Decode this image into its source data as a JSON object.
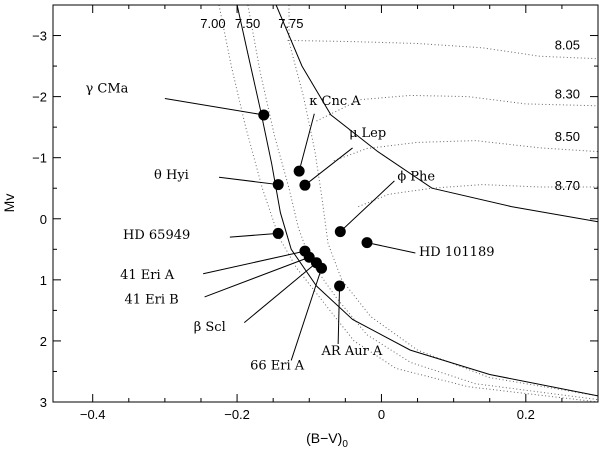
{
  "chart_data": {
    "type": "scatter",
    "xlabel": "(B−V)",
    "xlabel_sub": "0",
    "ylabel": "Mv",
    "xlim": [
      -0.455,
      0.3
    ],
    "ylim": [
      3.0,
      -3.5
    ],
    "x_inverted": false,
    "y_inverted": true,
    "xticks": [
      -0.4,
      -0.2,
      0.0,
      0.2
    ],
    "xtick_labels": [
      "−0.4",
      "−0.2",
      "0",
      "0.2"
    ],
    "yticks": [
      -3,
      -2,
      -1,
      0,
      1,
      2,
      3
    ],
    "ytick_labels": [
      "−3",
      "−2",
      "−1",
      "0",
      "1",
      "2",
      "3"
    ],
    "grid": false,
    "stars": [
      {
        "name": "γ CMa",
        "bv": -0.163,
        "mv": -1.7,
        "label_bv": -0.41,
        "label_mv": -2.07,
        "anchor": "start"
      },
      {
        "name": "κ Cnc A",
        "bv": -0.114,
        "mv": -0.78,
        "label_bv": -0.1,
        "label_mv": -1.86,
        "anchor": "start"
      },
      {
        "name": "μ Lep",
        "bv": -0.106,
        "mv": -0.55,
        "label_bv": -0.045,
        "label_mv": -1.34,
        "anchor": "start"
      },
      {
        "name": "θ Hyi",
        "bv": -0.143,
        "mv": -0.56,
        "label_bv": -0.315,
        "label_mv": -0.65,
        "anchor": "start"
      },
      {
        "name": "ϕ Phe",
        "bv": -0.057,
        "mv": 0.21,
        "label_bv": 0.022,
        "label_mv": -0.63,
        "anchor": "start"
      },
      {
        "name": "HD 65949",
        "bv": -0.143,
        "mv": 0.24,
        "label_bv": -0.358,
        "label_mv": 0.33,
        "anchor": "start"
      },
      {
        "name": "HD 101189",
        "bv": -0.02,
        "mv": 0.39,
        "label_bv": 0.052,
        "label_mv": 0.61,
        "anchor": "start"
      },
      {
        "name": "41 Eri A",
        "bv": -0.106,
        "mv": 0.53,
        "label_bv": -0.362,
        "label_mv": 0.99,
        "anchor": "start"
      },
      {
        "name": "41 Eri B",
        "bv": -0.1,
        "mv": 0.63,
        "label_bv": -0.356,
        "label_mv": 1.39,
        "anchor": "start"
      },
      {
        "name": "β Scl",
        "bv": -0.09,
        "mv": 0.72,
        "label_bv": -0.26,
        "label_mv": 1.84,
        "anchor": "start"
      },
      {
        "name": "66 Eri A",
        "bv": -0.083,
        "mv": 0.81,
        "label_bv": -0.182,
        "label_mv": 2.47,
        "anchor": "start"
      },
      {
        "name": "AR Aur A",
        "bv": -0.058,
        "mv": 1.1,
        "label_bv": -0.083,
        "label_mv": 2.23,
        "anchor": "start"
      }
    ],
    "isochrones": [
      {
        "label": "7.00",
        "label_bv": -0.251,
        "label_mv": -3.12,
        "points": [
          [
            -0.225,
            -3.5
          ],
          [
            -0.208,
            -2.5
          ],
          [
            -0.188,
            -1.5
          ],
          [
            -0.165,
            -0.5
          ],
          [
            -0.142,
            0.3
          ],
          [
            -0.118,
            0.8
          ],
          [
            -0.078,
            1.4
          ],
          [
            -0.038,
            2.0
          ],
          [
            0.02,
            2.45
          ],
          [
            0.12,
            2.75
          ],
          [
            0.3,
            3.0
          ]
        ]
      },
      {
        "label": "7.50",
        "label_bv": -0.203,
        "label_mv": -3.12,
        "points": [
          [
            -0.185,
            -3.5
          ],
          [
            -0.168,
            -2.4
          ],
          [
            -0.148,
            -1.35
          ],
          [
            -0.128,
            -0.5
          ],
          [
            -0.115,
            0.15
          ],
          [
            -0.098,
            0.7
          ],
          [
            -0.062,
            1.3
          ],
          [
            -0.02,
            1.9
          ],
          [
            0.04,
            2.35
          ],
          [
            0.13,
            2.7
          ],
          [
            0.3,
            2.96
          ]
        ]
      },
      {
        "label": "7.75",
        "label_bv": -0.143,
        "label_mv": -3.12,
        "points": [
          [
            -0.128,
            -3.5
          ],
          [
            -0.128,
            -2.9
          ],
          [
            -0.108,
            -2.0
          ],
          [
            -0.092,
            -1.1
          ],
          [
            -0.082,
            -0.3
          ],
          [
            -0.074,
            0.4
          ],
          [
            -0.055,
            1.0
          ],
          [
            -0.015,
            1.6
          ],
          [
            0.05,
            2.15
          ],
          [
            0.15,
            2.6
          ],
          [
            0.3,
            2.9
          ]
        ]
      },
      {
        "label": "8.05",
        "label_bv": 0.24,
        "label_mv": -2.77,
        "points": [
          [
            -0.13,
            -2.92
          ],
          [
            -0.04,
            -2.9
          ],
          [
            0.05,
            -2.87
          ],
          [
            0.14,
            -2.8
          ],
          [
            0.22,
            -2.66
          ],
          [
            0.3,
            -2.62
          ]
        ]
      },
      {
        "label": "8.30",
        "label_bv": 0.24,
        "label_mv": -1.97,
        "points": [
          [
            -0.09,
            -1.6
          ],
          [
            -0.03,
            -1.95
          ],
          [
            0.04,
            -2.02
          ],
          [
            0.12,
            -2.0
          ],
          [
            0.2,
            -1.88
          ],
          [
            0.3,
            -1.85
          ]
        ]
      },
      {
        "label": "8.50",
        "label_bv": 0.24,
        "label_mv": -1.27,
        "points": [
          [
            -0.066,
            -0.95
          ],
          [
            -0.02,
            -1.15
          ],
          [
            0.05,
            -1.25
          ],
          [
            0.13,
            -1.28
          ],
          [
            0.22,
            -1.16
          ],
          [
            0.3,
            -1.1
          ]
        ]
      },
      {
        "label": "8.70",
        "label_bv": 0.24,
        "label_mv": -0.47,
        "points": [
          [
            -0.032,
            -0.2
          ],
          [
            0.01,
            -0.4
          ],
          [
            0.07,
            -0.5
          ],
          [
            0.14,
            -0.56
          ],
          [
            0.22,
            -0.52
          ],
          [
            0.3,
            -0.52
          ]
        ]
      }
    ],
    "zams": [
      [
        -0.2,
        -3.5
      ],
      [
        -0.185,
        -2.7
      ],
      [
        -0.168,
        -1.8
      ],
      [
        -0.152,
        -0.9
      ],
      [
        -0.14,
        -0.1
      ],
      [
        -0.125,
        0.5
      ],
      [
        -0.09,
        1.1
      ],
      [
        -0.04,
        1.65
      ],
      [
        0.04,
        2.15
      ],
      [
        0.15,
        2.55
      ],
      [
        0.3,
        2.9
      ]
    ],
    "upper_bound": [
      [
        -0.146,
        -3.5
      ],
      [
        -0.11,
        -2.5
      ],
      [
        -0.07,
        -1.7
      ],
      [
        -0.005,
        -1.1
      ],
      [
        0.07,
        -0.5
      ],
      [
        0.18,
        -0.2
      ],
      [
        0.3,
        0.05
      ]
    ]
  }
}
